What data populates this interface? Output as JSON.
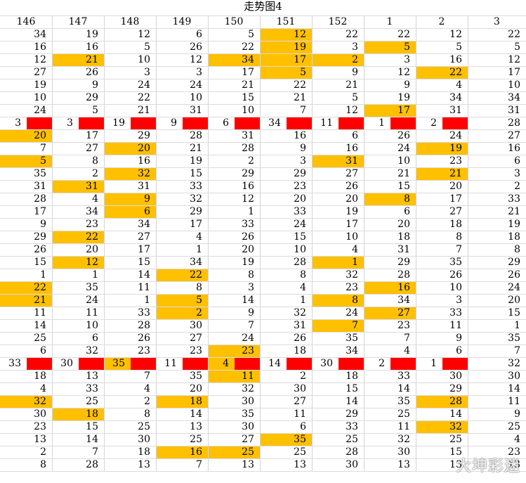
{
  "sheet": {
    "title": "走势图4",
    "columns": [
      "146",
      "147",
      "148",
      "149",
      "150",
      "151",
      "152",
      "1",
      "2",
      "3"
    ],
    "rows": [
      [
        "34",
        "19",
        "12",
        "6",
        "5",
        "12",
        "22",
        "22",
        "12",
        "22"
      ],
      [
        "16",
        "16",
        "5",
        "26",
        "22",
        "19",
        "3",
        "5",
        "5",
        "5"
      ],
      [
        "12",
        "21",
        "10",
        "12",
        "34",
        "17",
        "2",
        "3",
        "16",
        "12"
      ],
      [
        "27",
        "26",
        "3",
        "3",
        "17",
        "5",
        "9",
        "12",
        "22",
        "17"
      ],
      [
        "19",
        "9",
        "24",
        "24",
        "21",
        "22",
        "21",
        "9",
        "4",
        "10"
      ],
      [
        "10",
        "29",
        "22",
        "10",
        "15",
        "21",
        "5",
        "19",
        "34",
        "34"
      ],
      [
        "24",
        "5",
        "21",
        "31",
        "10",
        "7",
        "12",
        "17",
        "31",
        "31"
      ],
      [
        "3",
        "3",
        "19",
        "9",
        "6",
        "34",
        "11",
        "1",
        "2",
        "28"
      ],
      [
        "20",
        "17",
        "29",
        "28",
        "31",
        "16",
        "6",
        "26",
        "24",
        "27"
      ],
      [
        "7",
        "27",
        "20",
        "21",
        "28",
        "9",
        "16",
        "24",
        "19",
        "16"
      ],
      [
        "5",
        "8",
        "16",
        "19",
        "2",
        "3",
        "31",
        "10",
        "23",
        "6"
      ],
      [
        "35",
        "2",
        "32",
        "15",
        "29",
        "29",
        "27",
        "21",
        "21",
        "3"
      ],
      [
        "31",
        "31",
        "31",
        "33",
        "16",
        "23",
        "26",
        "15",
        "20",
        "2"
      ],
      [
        "28",
        "4",
        "9",
        "32",
        "12",
        "20",
        "20",
        "8",
        "17",
        "33"
      ],
      [
        "17",
        "34",
        "6",
        "29",
        "1",
        "33",
        "19",
        "6",
        "27",
        "21"
      ],
      [
        "9",
        "23",
        "34",
        "17",
        "33",
        "24",
        "17",
        "20",
        "18",
        "19"
      ],
      [
        "29",
        "22",
        "27",
        "4",
        "26",
        "15",
        "10",
        "18",
        "8",
        "18"
      ],
      [
        "26",
        "20",
        "17",
        "1",
        "20",
        "10",
        "4",
        "31",
        "7",
        "8"
      ],
      [
        "15",
        "12",
        "15",
        "34",
        "19",
        "28",
        "1",
        "29",
        "35",
        "29"
      ],
      [
        "1",
        "1",
        "14",
        "22",
        "8",
        "8",
        "32",
        "28",
        "26",
        "26"
      ],
      [
        "22",
        "35",
        "11",
        "8",
        "3",
        "4",
        "23",
        "16",
        "10",
        "24"
      ],
      [
        "21",
        "24",
        "1",
        "5",
        "14",
        "1",
        "8",
        "34",
        "3",
        "20"
      ],
      [
        "11",
        "11",
        "33",
        "2",
        "9",
        "32",
        "24",
        "27",
        "33",
        "15"
      ],
      [
        "14",
        "10",
        "28",
        "30",
        "7",
        "31",
        "7",
        "23",
        "11",
        "1"
      ],
      [
        "25",
        "6",
        "26",
        "27",
        "24",
        "26",
        "35",
        "7",
        "9",
        "35"
      ],
      [
        "6",
        "32",
        "23",
        "23",
        "23",
        "18",
        "34",
        "4",
        "6",
        "7"
      ],
      [
        "33",
        "30",
        "35",
        "11",
        "4",
        "14",
        "30",
        "2",
        "1",
        "32"
      ],
      [
        "18",
        "13",
        "7",
        "35",
        "11",
        "2",
        "18",
        "33",
        "30",
        "30"
      ],
      [
        "4",
        "33",
        "4",
        "20",
        "32",
        "30",
        "15",
        "14",
        "29",
        "14"
      ],
      [
        "32",
        "25",
        "2",
        "18",
        "30",
        "27",
        "14",
        "35",
        "28",
        "11"
      ],
      [
        "30",
        "18",
        "8",
        "14",
        "35",
        "11",
        "29",
        "25",
        "14",
        "9"
      ],
      [
        "23",
        "15",
        "25",
        "13",
        "30",
        "6",
        "33",
        "11",
        "32",
        "25"
      ],
      [
        "13",
        "14",
        "30",
        "25",
        "27",
        "35",
        "25",
        "32",
        "25",
        "4"
      ],
      [
        "2",
        "7",
        "18",
        "16",
        "25",
        "25",
        "28",
        "30",
        "15",
        "23"
      ],
      [
        "8",
        "28",
        "13",
        "7",
        "13",
        "13",
        "30",
        "13",
        "13",
        "13"
      ]
    ],
    "highlights": [
      [
        0,
        5
      ],
      [
        1,
        5
      ],
      [
        1,
        7
      ],
      [
        2,
        1
      ],
      [
        2,
        4
      ],
      [
        2,
        5
      ],
      [
        2,
        6
      ],
      [
        3,
        5
      ],
      [
        3,
        8
      ],
      [
        6,
        7
      ],
      [
        8,
        0
      ],
      [
        9,
        2
      ],
      [
        9,
        8
      ],
      [
        10,
        0
      ],
      [
        10,
        6
      ],
      [
        11,
        2
      ],
      [
        11,
        8
      ],
      [
        12,
        1
      ],
      [
        13,
        2
      ],
      [
        13,
        7
      ],
      [
        14,
        2
      ],
      [
        16,
        1
      ],
      [
        18,
        1
      ],
      [
        18,
        6
      ],
      [
        19,
        3
      ],
      [
        20,
        0
      ],
      [
        20,
        7
      ],
      [
        21,
        0
      ],
      [
        21,
        3
      ],
      [
        21,
        6
      ],
      [
        22,
        3
      ],
      [
        22,
        7
      ],
      [
        23,
        6
      ],
      [
        25,
        4
      ],
      [
        26,
        2
      ],
      [
        26,
        4
      ],
      [
        27,
        4
      ],
      [
        29,
        0
      ],
      [
        29,
        3
      ],
      [
        29,
        8
      ],
      [
        30,
        1
      ],
      [
        31,
        8
      ],
      [
        32,
        5
      ],
      [
        33,
        3
      ],
      [
        33,
        4
      ]
    ],
    "red_band_rows": [
      7,
      26
    ],
    "highlight_color": "#ffc000",
    "band_color": "#ff0000"
  },
  "watermark": {
    "text": "大坤彩迷"
  }
}
